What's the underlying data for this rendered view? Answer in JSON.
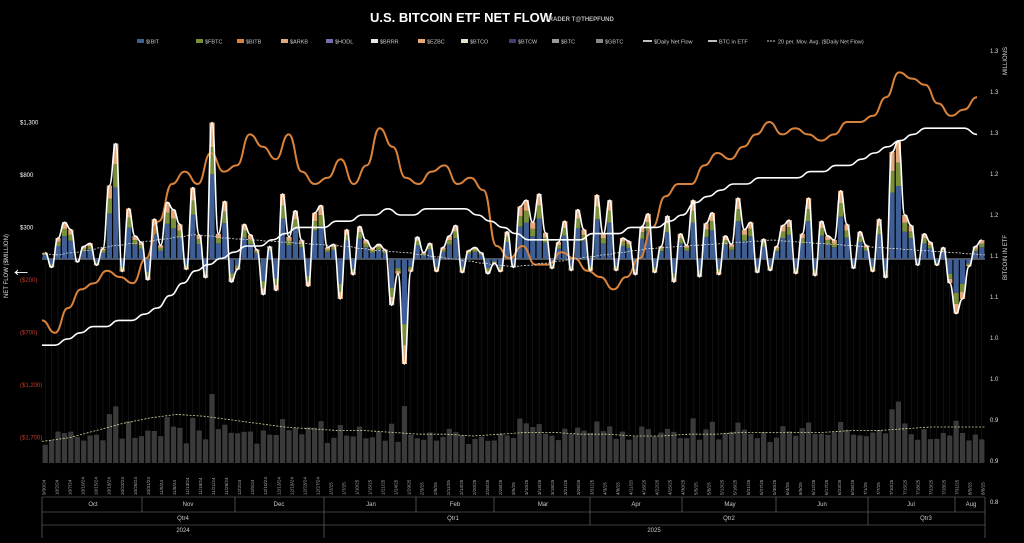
{
  "header": {
    "title": "U.S. BITCOIN ETF NET FLOW",
    "subtitle": "TRADER T@THEPFUND"
  },
  "nav": {
    "back_icon": "left-arrow-icon"
  },
  "colors": {
    "IBIT": "#3f5f94",
    "FBTC": "#7a8f3a",
    "BITB": "#d9823b",
    "ARKB": "#e4a97a",
    "HODL": "#7d6bb0",
    "BRRR": "#e8e8e8",
    "EZBC": "#e4a97a",
    "BTCO": "#dfe6c8",
    "BTCW": "#3d3d70",
    "BTC": "#9a9a9a",
    "GBTC": "#888888",
    "daily_net_flow": "#ffffff",
    "btc_in_etf": "#ffffff",
    "price_line": "#d9823b",
    "moving_avg": "#cccccc",
    "negative_tick": "#c0392b",
    "volume_bar": "#3a3a3a",
    "volume_avg": "#d8d49a"
  },
  "chart_data": {
    "type": "bar",
    "title": "U.S. BITCOIN ETF NET FLOW",
    "subtitle": "TRADER T@THEPFUND",
    "ylabel_left": "NET FLOW ($MILLION)",
    "ylabel_right": "BITCOIN IN ETF",
    "ylabel_right_top": "MILLIONS",
    "ylim_left": [
      -1850,
      1700
    ],
    "yticks_left": [
      "$1,300",
      "$800",
      "$300",
      "($200)",
      "($700)",
      "($1,200)",
      "($1,700)"
    ],
    "yticks_right": [
      "1.3",
      "1.3",
      "1.3",
      "1.2",
      "1.2",
      "1.1",
      "1.1",
      "1.0",
      "1.0",
      "0.9",
      "0.9",
      "0.8"
    ],
    "legend": [
      "$IBIT",
      "$FBTC",
      "$BITB",
      "$ARKB",
      "$HODL",
      "$BRRR",
      "$EZBC",
      "$BTCO",
      "$BTCW",
      "$BTC",
      "$GBTC",
      "$Daily Net Flow",
      "BTC in ETF",
      "20 per. Mov. Avg. ($Daily Net Flow)"
    ],
    "months": [
      "Oct",
      "Nov",
      "Dec",
      "Jan",
      "Feb",
      "Mar",
      "Apr",
      "May",
      "Jun",
      "Jul",
      "Aug"
    ],
    "quarters": [
      "Qtr4",
      "Qtr1",
      "Qtr2",
      "Qtr3"
    ],
    "years": [
      "2024",
      "2025"
    ],
    "date_labels": [
      "9/30/24",
      "10/2/24",
      "10/7/24",
      "10/10/24",
      "10/15/24",
      "10/18/24",
      "10/23/24",
      "10/28/24",
      "10/31/24",
      "11/5/24",
      "11/8/24",
      "11/13/24",
      "11/18/24",
      "11/21/24",
      "11/26/24",
      "12/2/24",
      "12/5/24",
      "12/10/24",
      "12/13/24",
      "12/18/24",
      "12/23/24",
      "12/27/24",
      "1/2/25",
      "1/7/25",
      "1/10/25",
      "1/15/25",
      "1/21/25",
      "1/24/25",
      "1/29/25",
      "2/3/25",
      "2/6/25",
      "2/11/25",
      "2/14/25",
      "2/20/25",
      "2/25/25",
      "2/28/25",
      "3/5/25",
      "3/10/25",
      "3/13/25",
      "3/18/25",
      "3/21/25",
      "3/26/25",
      "3/31/25",
      "4/3/25",
      "4/8/25",
      "4/11/25",
      "4/16/25",
      "4/22/25",
      "4/25/25",
      "4/30/25",
      "5/5/25",
      "5/8/25",
      "5/13/25",
      "5/16/25",
      "5/21/25",
      "5/27/25",
      "5/30/25",
      "6/4/25",
      "6/9/25",
      "6/12/25",
      "6/17/25",
      "6/23/25",
      "6/26/25",
      "7/1/25",
      "7/7/25",
      "7/10/25",
      "7/15/25",
      "7/18/25",
      "7/23/25",
      "7/28/25",
      "7/31/25",
      "8/5/25",
      "8/8/25"
    ],
    "daily_net_flow": [
      60,
      -80,
      200,
      350,
      280,
      -30,
      120,
      150,
      -60,
      100,
      700,
      1100,
      -120,
      480,
      220,
      160,
      -200,
      380,
      130,
      540,
      470,
      330,
      -100,
      680,
      230,
      -180,
      1300,
      240,
      550,
      -220,
      -100,
      330,
      230,
      90,
      -340,
      120,
      -300,
      620,
      210,
      460,
      180,
      -260,
      440,
      510,
      110,
      140,
      -380,
      280,
      -150,
      310,
      180,
      100,
      140,
      90,
      -440,
      -140,
      -1000,
      -120,
      210,
      60,
      150,
      -120,
      110,
      220,
      320,
      -130,
      80,
      110,
      60,
      -140,
      -40,
      -120,
      260,
      -80,
      500,
      560,
      350,
      620,
      250,
      -90,
      160,
      360,
      -110,
      470,
      280,
      -110,
      610,
      240,
      560,
      -110,
      200,
      170,
      -150,
      310,
      430,
      -130,
      120,
      410,
      -220,
      240,
      130,
      560,
      -170,
      340,
      440,
      -150,
      220,
      140,
      580,
      280,
      350,
      -130,
      190,
      -110,
      120,
      320,
      370,
      -140,
      240,
      580,
      -160,
      360,
      220,
      180,
      650,
      330,
      -90,
      260,
      130,
      -120,
      380,
      -180,
      1020,
      1120,
      420,
      320,
      -60,
      240,
      160,
      -60,
      110,
      -230,
      -520,
      -380,
      -70,
      120,
      180
    ],
    "btc_in_etf": [
      0.96,
      0.96,
      0.97,
      0.98,
      0.99,
      0.99,
      1.0,
      1.0,
      1.01,
      1.02,
      1.04,
      1.06,
      1.08,
      1.09,
      1.1,
      1.11,
      1.12,
      1.12,
      1.13,
      1.14,
      1.15,
      1.15,
      1.15,
      1.16,
      1.16,
      1.17,
      1.17,
      1.18,
      1.17,
      1.17,
      1.18,
      1.18,
      1.18,
      1.18,
      1.17,
      1.16,
      1.15,
      1.14,
      1.13,
      1.13,
      1.13,
      1.13,
      1.13,
      1.14,
      1.14,
      1.14,
      1.15,
      1.15,
      1.15,
      1.16,
      1.17,
      1.19,
      1.2,
      1.21,
      1.22,
      1.22,
      1.23,
      1.23,
      1.23,
      1.23,
      1.24,
      1.24,
      1.25,
      1.25,
      1.26,
      1.27,
      1.28,
      1.29,
      1.3,
      1.31,
      1.31,
      1.31,
      1.31,
      1.3
    ],
    "price_line": [
      1.0,
      0.98,
      1.02,
      1.05,
      1.06,
      1.08,
      1.07,
      1.06,
      1.1,
      1.16,
      1.22,
      1.24,
      1.22,
      1.27,
      1.24,
      1.25,
      1.3,
      1.28,
      1.26,
      1.3,
      1.24,
      1.22,
      1.23,
      1.26,
      1.22,
      1.25,
      1.31,
      1.28,
      1.23,
      1.22,
      1.24,
      1.25,
      1.22,
      1.23,
      1.21,
      1.12,
      1.1,
      1.12,
      1.09,
      1.09,
      1.11,
      1.1,
      1.08,
      1.07,
      1.05,
      1.07,
      1.1,
      1.15,
      1.2,
      1.22,
      1.22,
      1.25,
      1.27,
      1.26,
      1.28,
      1.3,
      1.32,
      1.3,
      1.31,
      1.3,
      1.29,
      1.3,
      1.32,
      1.32,
      1.33,
      1.36,
      1.4,
      1.39,
      1.38,
      1.35,
      1.33,
      1.34,
      1.36
    ],
    "moving_avg_20": [
      50,
      40,
      60,
      80,
      110,
      130,
      150,
      170,
      190,
      210,
      230,
      220,
      200,
      190,
      180,
      170,
      160,
      150,
      140,
      130,
      120,
      100,
      80,
      70,
      60,
      40,
      20,
      0,
      -20,
      -40,
      -60,
      -70,
      -60,
      -40,
      -20,
      0,
      20,
      40,
      60,
      80,
      100,
      110,
      120,
      130,
      140,
      150,
      160,
      170,
      180,
      170,
      160,
      150,
      140,
      130,
      120,
      110,
      100,
      90,
      80,
      70,
      60,
      50,
      40
    ],
    "volume_avg": [
      0.12,
      0.14,
      0.18,
      0.22,
      0.25,
      0.27,
      0.26,
      0.24,
      0.22,
      0.2,
      0.19,
      0.18,
      0.18,
      0.17,
      0.16,
      0.16,
      0.15,
      0.16,
      0.17,
      0.17,
      0.16,
      0.16,
      0.15,
      0.15,
      0.16,
      0.16,
      0.17,
      0.17,
      0.17,
      0.17,
      0.18,
      0.18,
      0.19,
      0.2,
      0.2,
      0.2
    ]
  }
}
